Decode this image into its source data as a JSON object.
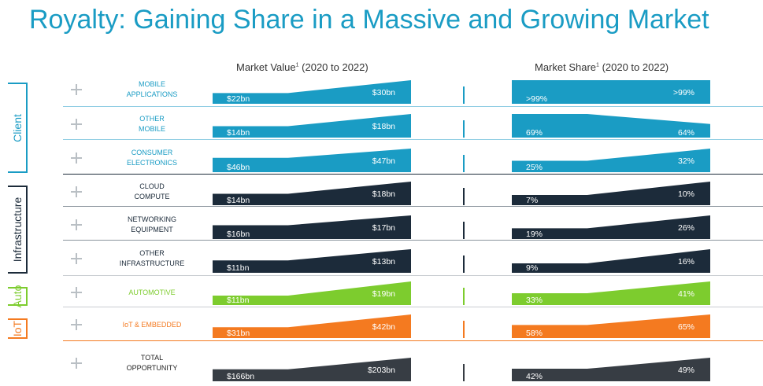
{
  "title": "Royalty: Gaining Share in a Massive and Growing Market",
  "columns": {
    "market_value": {
      "label": "Market Value",
      "sup": "1",
      "suffix": " (2020 to 2022)"
    },
    "market_share": {
      "label": "Market Share",
      "sup": "1",
      "suffix": " (2020 to 2022)"
    }
  },
  "groups": [
    {
      "label": "Client",
      "color": "#1a9cc4"
    },
    {
      "label": "Infrastructure",
      "color": "#1c2b3a"
    },
    {
      "label": "Auto",
      "color": "#7dcc2e"
    },
    {
      "label": "IoT",
      "color": "#f47a20"
    }
  ],
  "chart_data": {
    "type": "area",
    "series": [
      {
        "group": 0,
        "segment": "MOBILE\nAPPLICATIONS",
        "mv": [
          "$22bn",
          "$30bn"
        ],
        "mv_vals": [
          22,
          30
        ],
        "ms": [
          ">99%",
          ">99%"
        ],
        "ms_vals": [
          99.5,
          99.5
        ],
        "color": "#1a9cc4",
        "text_color": "#1a9cc4"
      },
      {
        "group": 0,
        "segment": "OTHER\nMOBILE",
        "mv": [
          "$14bn",
          "$18bn"
        ],
        "mv_vals": [
          14,
          18
        ],
        "ms": [
          "69%",
          "64%"
        ],
        "ms_vals": [
          69,
          64
        ],
        "color": "#1a9cc4",
        "text_color": "#1a9cc4"
      },
      {
        "group": 0,
        "segment": "CONSUMER\nELECTRONICS",
        "mv": [
          "$46bn",
          "$47bn"
        ],
        "mv_vals": [
          46,
          47
        ],
        "ms": [
          "25%",
          "32%"
        ],
        "ms_vals": [
          25,
          32
        ],
        "color": "#1a9cc4",
        "text_color": "#1a9cc4"
      },
      {
        "group": 1,
        "segment": "CLOUD\nCOMPUTE",
        "mv": [
          "$14bn",
          "$18bn"
        ],
        "mv_vals": [
          14,
          18
        ],
        "ms": [
          "7%",
          "10%"
        ],
        "ms_vals": [
          7,
          10
        ],
        "color": "#1c2b3a",
        "text_color": "#1c2b3a"
      },
      {
        "group": 1,
        "segment": "NETWORKING\nEQUIPMENT",
        "mv": [
          "$16bn",
          "$17bn"
        ],
        "mv_vals": [
          16,
          17
        ],
        "ms": [
          "19%",
          "26%"
        ],
        "ms_vals": [
          19,
          26
        ],
        "color": "#1c2b3a",
        "text_color": "#1c2b3a"
      },
      {
        "group": 1,
        "segment": "OTHER\nINFRASTRUCTURE",
        "mv": [
          "$11bn",
          "$13bn"
        ],
        "mv_vals": [
          11,
          13
        ],
        "ms": [
          "9%",
          "16%"
        ],
        "ms_vals": [
          9,
          16
        ],
        "color": "#1c2b3a",
        "text_color": "#1c2b3a"
      },
      {
        "group": 2,
        "segment": "AUTOMOTIVE",
        "mv": [
          "$11bn",
          "$19bn"
        ],
        "mv_vals": [
          11,
          19
        ],
        "ms": [
          "33%",
          "41%"
        ],
        "ms_vals": [
          33,
          41
        ],
        "color": "#7dcc2e",
        "text_color": "#7dcc2e"
      },
      {
        "group": 3,
        "segment": "IoT & EMBEDDED",
        "mv": [
          "$31bn",
          "$42bn"
        ],
        "mv_vals": [
          31,
          42
        ],
        "ms": [
          "58%",
          "65%"
        ],
        "ms_vals": [
          58,
          65
        ],
        "color": "#f47a20",
        "text_color": "#f47a20"
      },
      {
        "group": null,
        "segment": "TOTAL\nOPPORTUNITY",
        "mv": [
          "$166bn",
          "$203bn"
        ],
        "mv_vals": [
          166,
          203
        ],
        "ms": [
          "42%",
          "49%"
        ],
        "ms_vals": [
          42,
          49
        ],
        "color": "#373d44",
        "text_color": "#222222"
      }
    ]
  }
}
